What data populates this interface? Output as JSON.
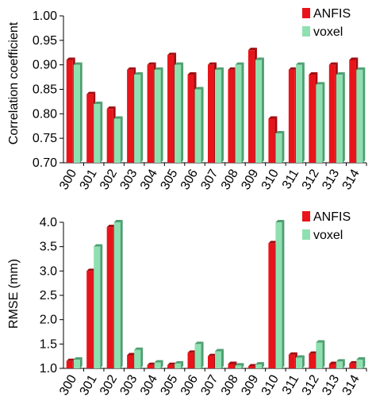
{
  "colors": {
    "anfis": "#e8141a",
    "voxel": "#8fe0b0",
    "anfis_dark": "#a10d10",
    "voxel_dark": "#4f9f73",
    "axis": "#000000"
  },
  "chart_data": [
    {
      "type": "bar",
      "categories": [
        "300",
        "301",
        "302",
        "303",
        "304",
        "305",
        "306",
        "307",
        "308",
        "309",
        "310",
        "311",
        "312",
        "313",
        "314"
      ],
      "series": [
        {
          "name": "ANFIS",
          "values": [
            0.91,
            0.84,
            0.81,
            0.89,
            0.9,
            0.92,
            0.88,
            0.9,
            0.89,
            0.93,
            0.79,
            0.89,
            0.88,
            0.9,
            0.91
          ]
        },
        {
          "name": "voxel",
          "values": [
            0.9,
            0.82,
            0.79,
            0.88,
            0.89,
            0.9,
            0.85,
            0.89,
            0.9,
            0.91,
            0.76,
            0.9,
            0.86,
            0.88,
            0.89
          ]
        }
      ],
      "ylabel": "Correlation coefficient",
      "xlabel": "",
      "ylim": [
        0.7,
        1.0
      ],
      "yticks": [
        "0.70",
        "0.75",
        "0.80",
        "0.85",
        "0.90",
        "0.95",
        "1.00"
      ],
      "legend": "top-right",
      "grid": false
    },
    {
      "type": "bar",
      "categories": [
        "300",
        "301",
        "302",
        "303",
        "304",
        "305",
        "306",
        "307",
        "308",
        "309",
        "310",
        "311",
        "312",
        "313",
        "314"
      ],
      "series": [
        {
          "name": "ANFIS",
          "values": [
            1.15,
            3.0,
            3.9,
            1.27,
            1.07,
            1.07,
            1.32,
            1.25,
            1.09,
            1.04,
            3.57,
            1.28,
            1.3,
            1.09,
            1.1
          ]
        },
        {
          "name": "voxel",
          "values": [
            1.18,
            3.5,
            4.0,
            1.38,
            1.12,
            1.1,
            1.5,
            1.35,
            1.06,
            1.08,
            4.0,
            1.22,
            1.53,
            1.14,
            1.18
          ]
        }
      ],
      "ylabel": "RMSE (mm)",
      "xlabel": "",
      "ylim": [
        1.0,
        4.0
      ],
      "yticks": [
        "1.0",
        "1.5",
        "2.0",
        "2.5",
        "3.0",
        "3.5",
        "4.0"
      ],
      "legend": "top-right",
      "grid": false
    }
  ]
}
